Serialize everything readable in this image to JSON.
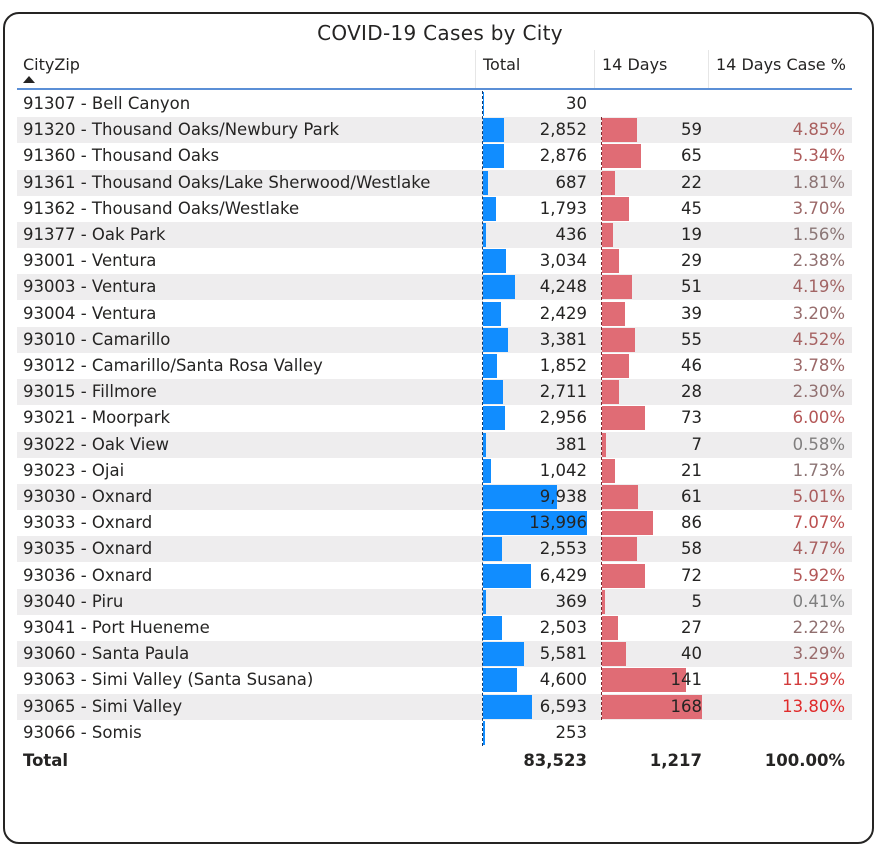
{
  "title": "COVID-19 Cases by City",
  "colors": {
    "total_bar": "#118dff",
    "days_bar": "#e06c75",
    "row_alt": "#eeedee",
    "header_line": "#5b8fd6"
  },
  "sort_icon": "sort-ascending-icon",
  "columns": {
    "city": "CityZip",
    "total": "Total",
    "days": "14 Days",
    "pct": "14 Days Case %"
  },
  "max_total": 13996,
  "max_days": 168,
  "rows": [
    {
      "city": "91307 - Bell Canyon",
      "total": "30",
      "total_value": 30,
      "days": "",
      "days_value": 0,
      "pct": "",
      "pct_color": "#c0504d"
    },
    {
      "city": "91320 - Thousand Oaks/Newbury Park",
      "total": "2,852",
      "total_value": 2852,
      "days": "59",
      "days_value": 59,
      "pct": "4.85%",
      "pct_color": "#a9605f"
    },
    {
      "city": "91360 - Thousand Oaks",
      "total": "2,876",
      "total_value": 2876,
      "days": "65",
      "days_value": 65,
      "pct": "5.34%",
      "pct_color": "#ad5b5b"
    },
    {
      "city": "91361 - Thousand Oaks/Lake Sherwood/Westlake",
      "total": "687",
      "total_value": 687,
      "days": "22",
      "days_value": 22,
      "pct": "1.81%",
      "pct_color": "#8c7474"
    },
    {
      "city": "91362 - Thousand Oaks/Westlake",
      "total": "1,793",
      "total_value": 1793,
      "days": "45",
      "days_value": 45,
      "pct": "3.70%",
      "pct_color": "#9c6868"
    },
    {
      "city": "91377 - Oak Park",
      "total": "436",
      "total_value": 436,
      "days": "19",
      "days_value": 19,
      "pct": "1.56%",
      "pct_color": "#8a7676"
    },
    {
      "city": "93001 - Ventura",
      "total": "3,034",
      "total_value": 3034,
      "days": "29",
      "days_value": 29,
      "pct": "2.38%",
      "pct_color": "#917070"
    },
    {
      "city": "93003 - Ventura",
      "total": "4,248",
      "total_value": 4248,
      "days": "51",
      "days_value": 51,
      "pct": "4.19%",
      "pct_color": "#a26464"
    },
    {
      "city": "93004 - Ventura",
      "total": "2,429",
      "total_value": 2429,
      "days": "39",
      "days_value": 39,
      "pct": "3.20%",
      "pct_color": "#976c6c"
    },
    {
      "city": "93010 - Camarillo",
      "total": "3,381",
      "total_value": 3381,
      "days": "55",
      "days_value": 55,
      "pct": "4.52%",
      "pct_color": "#a66262"
    },
    {
      "city": "93012 - Camarillo/Santa Rosa Valley",
      "total": "1,852",
      "total_value": 1852,
      "days": "46",
      "days_value": 46,
      "pct": "3.78%",
      "pct_color": "#9c6868"
    },
    {
      "city": "93015 - Fillmore",
      "total": "2,711",
      "total_value": 2711,
      "days": "28",
      "days_value": 28,
      "pct": "2.30%",
      "pct_color": "#917070"
    },
    {
      "city": "93021 - Moorpark",
      "total": "2,956",
      "total_value": 2956,
      "days": "73",
      "days_value": 73,
      "pct": "6.00%",
      "pct_color": "#b35656"
    },
    {
      "city": "93022 - Oak View",
      "total": "381",
      "total_value": 381,
      "days": "7",
      "days_value": 7,
      "pct": "0.58%",
      "pct_color": "#807e7e"
    },
    {
      "city": "93023 - Ojai",
      "total": "1,042",
      "total_value": 1042,
      "days": "21",
      "days_value": 21,
      "pct": "1.73%",
      "pct_color": "#8c7474"
    },
    {
      "city": "93030 - Oxnard",
      "total": "9,938",
      "total_value": 9938,
      "days": "61",
      "days_value": 61,
      "pct": "5.01%",
      "pct_color": "#aa5e5e"
    },
    {
      "city": "93033 - Oxnard",
      "total": "13,996",
      "total_value": 13996,
      "days": "86",
      "days_value": 86,
      "pct": "7.07%",
      "pct_color": "#bb4f4f"
    },
    {
      "city": "93035 - Oxnard",
      "total": "2,553",
      "total_value": 2553,
      "days": "58",
      "days_value": 58,
      "pct": "4.77%",
      "pct_color": "#a96060"
    },
    {
      "city": "93036 - Oxnard",
      "total": "6,429",
      "total_value": 6429,
      "days": "72",
      "days_value": 72,
      "pct": "5.92%",
      "pct_color": "#b25757"
    },
    {
      "city": "93040 - Piru",
      "total": "369",
      "total_value": 369,
      "days": "5",
      "days_value": 5,
      "pct": "0.41%",
      "pct_color": "#7e7e7e"
    },
    {
      "city": "93041 - Port Hueneme",
      "total": "2,503",
      "total_value": 2503,
      "days": "27",
      "days_value": 27,
      "pct": "2.22%",
      "pct_color": "#906f6f"
    },
    {
      "city": "93060 - Santa Paula",
      "total": "5,581",
      "total_value": 5581,
      "days": "40",
      "days_value": 40,
      "pct": "3.29%",
      "pct_color": "#996b6b"
    },
    {
      "city": "93063 - Simi Valley (Santa Susana)",
      "total": "4,600",
      "total_value": 4600,
      "days": "141",
      "days_value": 141,
      "pct": "11.59%",
      "pct_color": "#d23a3a"
    },
    {
      "city": "93065 - Simi Valley",
      "total": "6,593",
      "total_value": 6593,
      "days": "168",
      "days_value": 168,
      "pct": "13.80%",
      "pct_color": "#e02a2a"
    },
    {
      "city": "93066 - Somis",
      "total": "253",
      "total_value": 253,
      "days": "",
      "days_value": 0,
      "pct": "",
      "pct_color": "#c0504d"
    }
  ],
  "total_row": {
    "label": "Total",
    "total": "83,523",
    "days": "1,217",
    "pct": "100.00%"
  }
}
